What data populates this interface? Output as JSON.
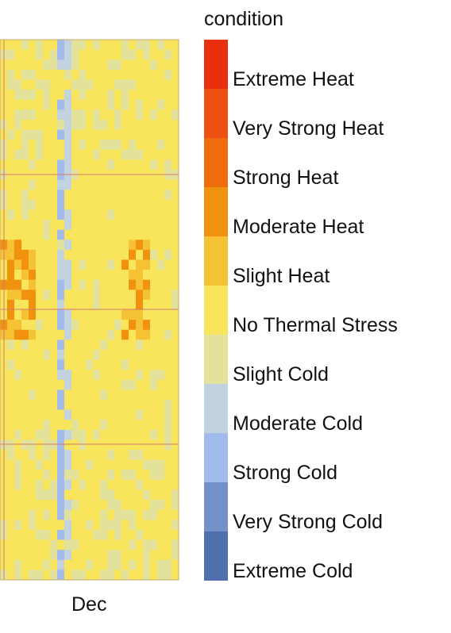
{
  "chart_data": {
    "type": "heatmap",
    "x_tick_labels": [
      "Dec"
    ],
    "legend_title": "condition",
    "colors": {
      "Extreme Heat": "#e8300e",
      "Very Strong Heat": "#ec4f0f",
      "Strong Heat": "#ee6c0e",
      "Moderate Heat": "#f0920e",
      "Slight Heat": "#f6c235",
      "No Thermal Stress": "#f8e55c",
      "Slight Cold": "#e2e29c",
      "Moderate Cold": "#c2d2df",
      "Strong Cold": "#a3bbec",
      "Very Strong Cold": "#7391c9",
      "Extreme Cold": "#4f6fae"
    },
    "categories": [
      "Extreme Heat",
      "Very Strong Heat",
      "Strong Heat",
      "Moderate Heat",
      "Slight Heat",
      "No Thermal Stress",
      "Slight Cold",
      "Moderate Cold",
      "Strong Cold",
      "Very Strong Cold",
      "Extreme Cold"
    ],
    "grid": true,
    "legend_position": "right"
  }
}
